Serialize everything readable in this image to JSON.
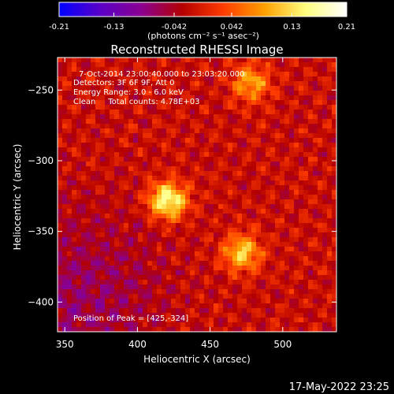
{
  "chart_data": {
    "type": "heatmap",
    "title": "Reconstructed RHESSI Image",
    "colorbar": {
      "ticks": [
        "-0.21",
        "-0.13",
        "-0.042",
        "0.042",
        "0.13",
        "0.21"
      ],
      "tick_values": [
        -0.21,
        -0.13,
        -0.042,
        0.042,
        0.13,
        0.21
      ],
      "range": [
        -0.21,
        0.21
      ],
      "label": "(photons cm⁻² s⁻¹ asec⁻²)",
      "colormap": [
        "#0000ff",
        "#5a00c8",
        "#8a0090",
        "#b40000",
        "#ff3c00",
        "#ffa000",
        "#ffff80",
        "#ffffff"
      ]
    },
    "xlabel": "Heliocentric X (arcsec)",
    "ylabel": "Heliocentric Y (arcsec)",
    "xlim": [
      345,
      537
    ],
    "ylim": [
      -421,
      -227
    ],
    "xticks": [
      350,
      400,
      450,
      500
    ],
    "yticks": [
      -250,
      -300,
      -350,
      -400
    ],
    "annotations": [
      "7-Oct-2014 23:00:40.000 to 23:03:20.000",
      "Detectors: 3F 6F 9F, Att 0",
      "Energy Range: 3.0 - 6.0 keV",
      "Clean     Total counts: 4.78E+03"
    ],
    "peak_label": "Position of Peak = [425,-324]",
    "peak": {
      "x": 425,
      "y": -324
    },
    "timestamp": "17-May-2022 23:25",
    "sources": [
      {
        "x": 421,
        "y": -328,
        "level": 1.0
      },
      {
        "x": 472,
        "y": -365,
        "level": 0.72
      },
      {
        "x": 478,
        "y": -245,
        "level": 0.62
      }
    ]
  }
}
